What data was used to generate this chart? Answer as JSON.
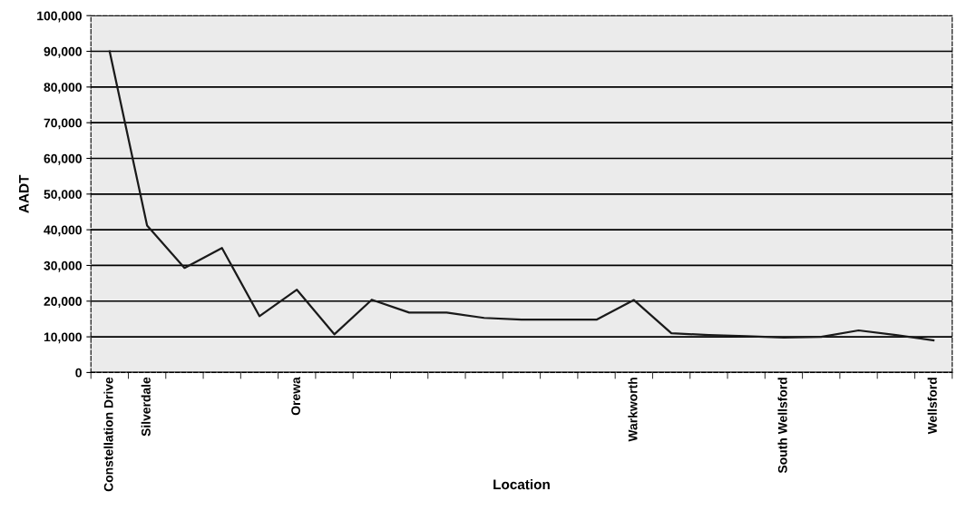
{
  "chart_data": {
    "type": "line",
    "xlabel": "Location",
    "ylabel": "AADT",
    "categories": [
      "Constellation Drive",
      "Silverdale",
      null,
      null,
      null,
      "Orewa",
      null,
      null,
      null,
      null,
      null,
      null,
      null,
      null,
      "Warkworth",
      null,
      null,
      null,
      "South Wellsford",
      null,
      null,
      null,
      "Wellsford"
    ],
    "series": [
      {
        "color": "#1a1a1a",
        "values": [
          90000,
          41200,
          29300,
          34900,
          15800,
          23200,
          10700,
          20400,
          16800,
          16800,
          15300,
          14800,
          14800,
          14800,
          20300,
          11000,
          10500,
          10200,
          9800,
          10000,
          11800,
          10500,
          9000
        ]
      }
    ],
    "ylim": [
      0,
      100000
    ],
    "yticks": [
      {
        "value": 0,
        "label": "0"
      },
      {
        "value": 10000,
        "label": "10,000"
      },
      {
        "value": 20000,
        "label": "20,000"
      },
      {
        "value": 30000,
        "label": "30,000"
      },
      {
        "value": 40000,
        "label": "40,000"
      },
      {
        "value": 50000,
        "label": "50,000"
      },
      {
        "value": 60000,
        "label": "60,000"
      },
      {
        "value": 70000,
        "label": "70,000"
      },
      {
        "value": 80000,
        "label": "80,000"
      },
      {
        "value": 90000,
        "label": "90,000"
      },
      {
        "value": 100000,
        "label": "100,000"
      }
    ],
    "grid": "y",
    "marker": "none",
    "line_style": "solid"
  }
}
